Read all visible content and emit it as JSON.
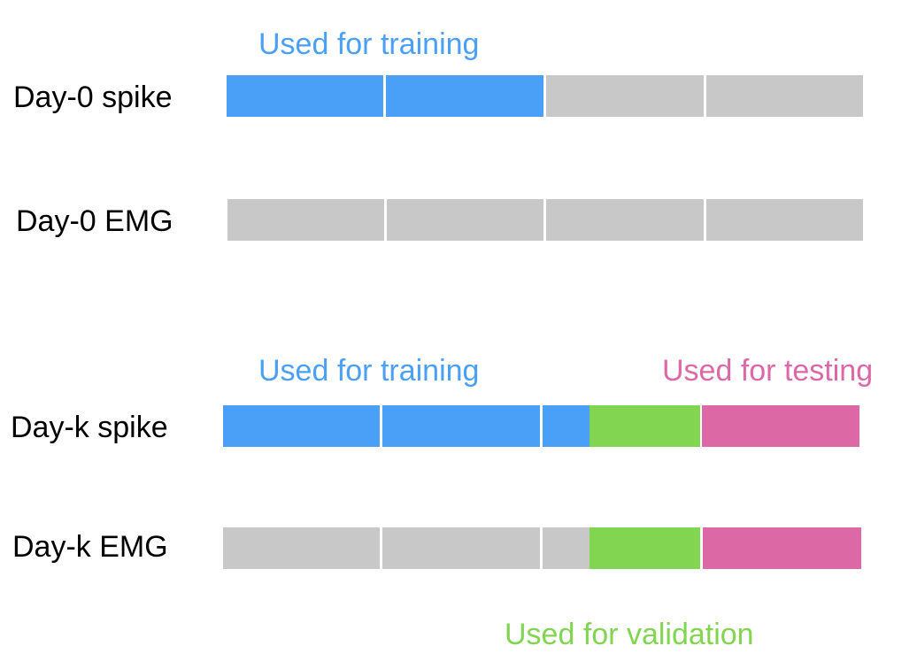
{
  "colors": {
    "training": "#4aa0f7",
    "unused": "#c8c8c8",
    "validation": "#81d551",
    "testing": "#dc68a6"
  },
  "captions": {
    "train_top": "Used for training",
    "train_bottom": "Used for training",
    "testing": "Used for testing",
    "validation": "Used for validation"
  },
  "rows": [
    {
      "label": "Day-0 spike",
      "segments": [
        "training",
        "training",
        "unused",
        "unused"
      ]
    },
    {
      "label": "Day-0 EMG",
      "segments": [
        "unused",
        "unused",
        "unused",
        "unused"
      ]
    },
    {
      "label": "Day-k spike",
      "segments": [
        "training",
        "training",
        "training",
        "validation",
        "testing"
      ]
    },
    {
      "label": "Day-k EMG",
      "segments": [
        "unused",
        "unused",
        "unused",
        "validation",
        "testing"
      ]
    }
  ]
}
